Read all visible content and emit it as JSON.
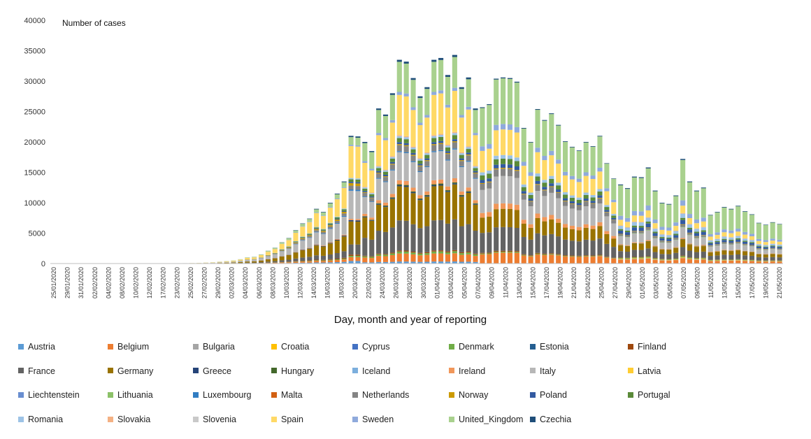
{
  "chart_data": {
    "type": "bar",
    "stacked": true,
    "title": "",
    "ylabel": "Number of cases",
    "xlabel": "Day, month and year of reporting",
    "ylim": [
      0,
      40000
    ],
    "yticks": [
      0,
      5000,
      10000,
      15000,
      20000,
      25000,
      30000,
      35000,
      40000
    ],
    "tick_labels": [
      "25/01/2020",
      "29/01/2020",
      "31/01/2020",
      "02/02/2020",
      "04/02/2020",
      "08/02/2020",
      "10/02/2020",
      "12/02/2020",
      "17/02/2020",
      "23/02/2020",
      "25/02/2020",
      "27/02/2020",
      "29/02/2020",
      "02/03/2020",
      "04/03/2020",
      "06/03/2020",
      "08/03/2020",
      "10/03/2020",
      "12/03/2020",
      "14/03/2020",
      "16/03/2020",
      "18/03/2020",
      "20/03/2020",
      "22/03/2020",
      "24/03/2020",
      "26/03/2020",
      "28/03/2020",
      "30/03/2020",
      "01/04/2020",
      "03/04/2020",
      "05/04/2020",
      "07/04/2020",
      "09/04/2020",
      "11/04/2020",
      "13/04/2020",
      "15/04/2020",
      "17/04/2020",
      "19/04/2020",
      "21/04/2020",
      "23/04/2020",
      "25/04/2020",
      "27/04/2020",
      "29/04/2020",
      "01/05/2020",
      "03/05/2020",
      "05/05/2020",
      "07/05/2020",
      "09/05/2020",
      "11/05/2020",
      "13/05/2020",
      "15/05/2020",
      "17/05/2020",
      "19/05/2020",
      "21/05/2020"
    ],
    "totals": [
      40,
      30,
      40,
      30,
      30,
      40,
      30,
      40,
      30,
      30,
      40,
      30,
      40,
      30,
      30,
      40,
      30,
      30,
      50,
      60,
      80,
      100,
      150,
      200,
      300,
      400,
      500,
      700,
      1000,
      1100,
      1500,
      2100,
      2600,
      3500,
      4200,
      5500,
      6600,
      7400,
      9000,
      8500,
      10000,
      11500,
      13500,
      21000,
      20900,
      20000,
      18500,
      25500,
      24500,
      28000,
      33500,
      33200,
      30500,
      27500,
      29000,
      33500,
      33800,
      31000,
      34300,
      29000,
      30600,
      25500,
      25700,
      26200,
      30400,
      30600,
      30500,
      29900,
      22300,
      20000,
      25400,
      23600,
      24700,
      22800,
      20100,
      19200,
      18600,
      20000,
      19300,
      21000,
      16500,
      14000,
      13000,
      12400,
      14300,
      14200,
      15800,
      12000,
      10000,
      9800,
      11200,
      17200,
      13500,
      12000,
      12500,
      8000,
      8500,
      9300,
      9000,
      9500,
      8600,
      8100,
      6700,
      6400,
      6800,
      6500
    ],
    "breakpoints": [
      {
        "total": 0,
        "mix": "early"
      },
      {
        "total": 15000,
        "mix": "mar"
      },
      {
        "total": 30000,
        "mix": "peak"
      },
      {
        "total": 20000,
        "mix": "apr"
      },
      {
        "total": 12000,
        "mix": "may"
      }
    ],
    "mixes": {
      "early": {
        "Italy": 0.6,
        "France": 0.1,
        "Germany": 0.1,
        "Spain": 0.1,
        "Austria": 0.05,
        "Belgium": 0.05
      },
      "mar": {
        "Belgium": 0.03,
        "France": 0.08,
        "Germany": 0.18,
        "Italy": 0.22,
        "Netherlands": 0.03,
        "Spain": 0.25,
        "Portugal": 0.02,
        "Austria": 0.02,
        "United_Kingdom": 0.06,
        "Sweden": 0.01,
        "Ireland": 0.01,
        "Poland": 0.01,
        "Norway": 0.02,
        "Czechia": 0.01,
        "Denmark": 0.01,
        "Finland": 0.01,
        "Greece": 0.01,
        "Romania": 0.01,
        "Luxembourg": 0.01
      },
      "peak": {
        "Belgium": 0.04,
        "France": 0.15,
        "Germany": 0.17,
        "Italy": 0.14,
        "Netherlands": 0.03,
        "Spain": 0.2,
        "Portugal": 0.02,
        "Austria": 0.01,
        "United_Kingdom": 0.15,
        "Sweden": 0.015,
        "Ireland": 0.02,
        "Poland": 0.01,
        "Romania": 0.01,
        "Czechia": 0.01,
        "Denmark": 0.01,
        "Luxembourg": 0.005,
        "Greece": 0.005,
        "Hungary": 0.005,
        "Finland": 0.005,
        "Norway": 0.005,
        "Slovakia": 0.005
      },
      "apr": {
        "Belgium": 0.06,
        "France": 0.13,
        "Germany": 0.1,
        "Italy": 0.15,
        "Netherlands": 0.04,
        "Spain": 0.14,
        "Portugal": 0.03,
        "United_Kingdom": 0.25,
        "Sweden": 0.03,
        "Ireland": 0.03,
        "Poland": 0.02,
        "Romania": 0.02,
        "Czechia": 0.005,
        "Denmark": 0.005,
        "Finland": 0.005,
        "Norway": 0.005
      },
      "may": {
        "Belgium": 0.05,
        "France": 0.08,
        "Germany": 0.07,
        "Italy": 0.1,
        "Netherlands": 0.02,
        "Spain": 0.07,
        "Portugal": 0.02,
        "United_Kingdom": 0.38,
        "Sweden": 0.05,
        "Ireland": 0.01,
        "Poland": 0.04,
        "Romania": 0.04,
        "Czechia": 0.01,
        "Denmark": 0.01,
        "Slovakia": 0.005,
        "Hungary": 0.005,
        "Finland": 0.005,
        "Norway": 0.005,
        "Bulgaria": 0.005,
        "Croatia": 0.005,
        "Lithuania": 0.005
      }
    },
    "series": [
      {
        "name": "Austria",
        "color": "#5b9bd5"
      },
      {
        "name": "Belgium",
        "color": "#ed7d31"
      },
      {
        "name": "Bulgaria",
        "color": "#a5a5a5"
      },
      {
        "name": "Croatia",
        "color": "#ffc000"
      },
      {
        "name": "Cyprus",
        "color": "#4472c4"
      },
      {
        "name": "Denmark",
        "color": "#70ad47"
      },
      {
        "name": "Estonia",
        "color": "#255e91"
      },
      {
        "name": "Finland",
        "color": "#9e480e"
      },
      {
        "name": "France",
        "color": "#636363"
      },
      {
        "name": "Germany",
        "color": "#997300"
      },
      {
        "name": "Greece",
        "color": "#264478"
      },
      {
        "name": "Hungary",
        "color": "#43682b"
      },
      {
        "name": "Iceland",
        "color": "#7cafdd"
      },
      {
        "name": "Ireland",
        "color": "#f1975a"
      },
      {
        "name": "Italy",
        "color": "#b7b7b7"
      },
      {
        "name": "Latvia",
        "color": "#ffcd33"
      },
      {
        "name": "Liechtenstein",
        "color": "#698ed0"
      },
      {
        "name": "Lithuania",
        "color": "#8cc168"
      },
      {
        "name": "Luxembourg",
        "color": "#327dc2"
      },
      {
        "name": "Malta",
        "color": "#d26012"
      },
      {
        "name": "Netherlands",
        "color": "#848484"
      },
      {
        "name": "Norway",
        "color": "#cc9a00"
      },
      {
        "name": "Poland",
        "color": "#335aa1"
      },
      {
        "name": "Portugal",
        "color": "#5a8a39"
      },
      {
        "name": "Romania",
        "color": "#9dc3e6"
      },
      {
        "name": "Slovakia",
        "color": "#f4b183"
      },
      {
        "name": "Slovenia",
        "color": "#c9c9c9"
      },
      {
        "name": "Spain",
        "color": "#ffd966"
      },
      {
        "name": "Sweden",
        "color": "#8faadc"
      },
      {
        "name": "United_Kingdom",
        "color": "#a9d18e"
      },
      {
        "name": "Czechia",
        "color": "#1f4e79"
      }
    ]
  }
}
